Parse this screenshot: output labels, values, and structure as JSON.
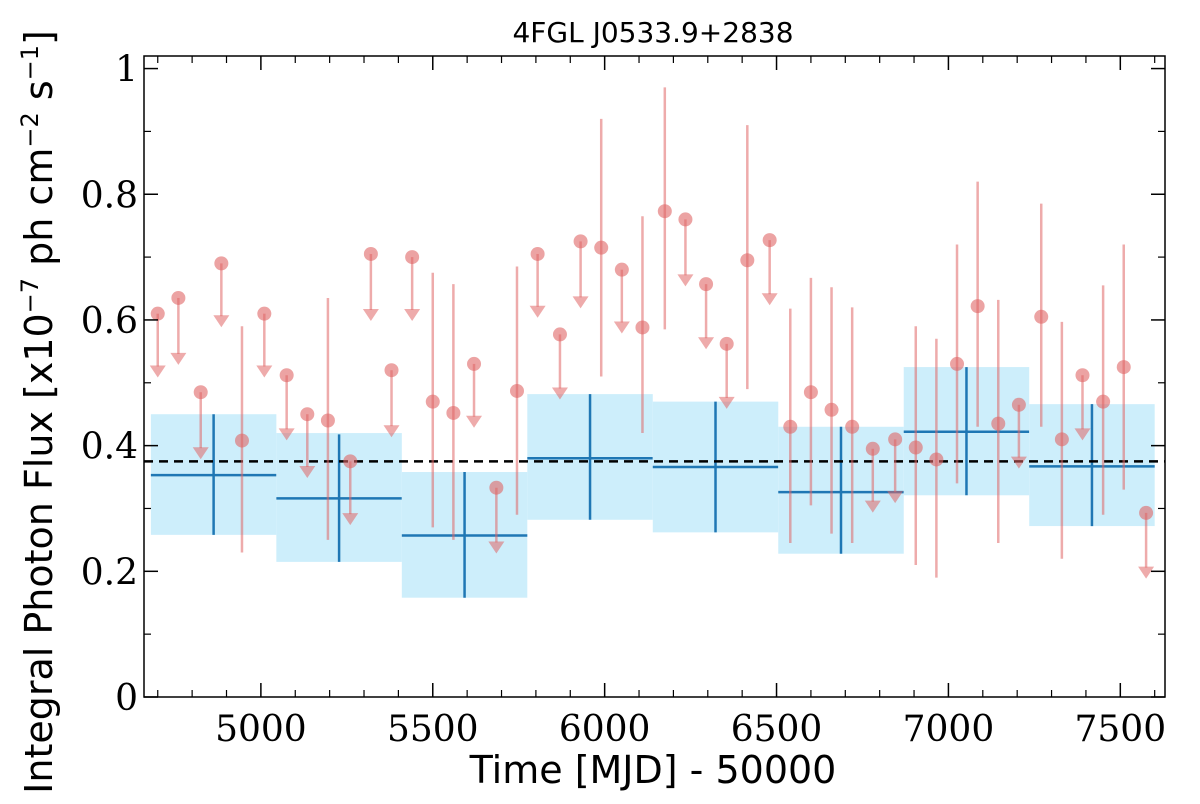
{
  "chart_data": {
    "type": "scatter",
    "title": "4FGL J0533.9+2838",
    "xlabel": "Time [MJD] - 50000",
    "ylabel": "Integral Photon Flux [x10",
    "ylabel_exp": "−7",
    "ylabel_mid": " ph cm",
    "ylabel_exp2": "−2",
    "ylabel_mid2": " s",
    "ylabel_exp3": "−1",
    "ylabel_end": "]",
    "xlim": [
      4660,
      7630
    ],
    "ylim": [
      0,
      1.02
    ],
    "xticks": [
      5000,
      5500,
      6000,
      6500,
      7000,
      7500
    ],
    "xtick_labels": [
      "5000",
      "5500",
      "6000",
      "6500",
      "7000",
      "7500"
    ],
    "yticks": [
      0,
      0.2,
      0.4,
      0.6,
      0.8,
      1
    ],
    "ytick_labels": [
      "0",
      "0.2",
      "0.4",
      "0.6",
      "0.8",
      "1"
    ],
    "mean_flux": 0.375,
    "colors": {
      "bin_line": "#1f77b4",
      "bin_fill": "#cdeefb",
      "point": "#e06666",
      "mean_line": "#000000"
    },
    "yearly_bins": [
      {
        "x_start": 4680,
        "x_end": 5045,
        "y": 0.353,
        "y_low": 0.258,
        "y_high": 0.45,
        "y_err_low": 0.258,
        "y_err_high": 0.45
      },
      {
        "x_start": 5045,
        "x_end": 5410,
        "y": 0.316,
        "y_low": 0.215,
        "y_high": 0.42,
        "y_err_low": 0.215,
        "y_err_high": 0.418
      },
      {
        "x_start": 5410,
        "x_end": 5775,
        "y": 0.257,
        "y_low": 0.158,
        "y_high": 0.358,
        "y_err_low": 0.158,
        "y_err_high": 0.358
      },
      {
        "x_start": 5775,
        "x_end": 6140,
        "y": 0.38,
        "y_low": 0.282,
        "y_high": 0.482,
        "y_err_low": 0.282,
        "y_err_high": 0.482
      },
      {
        "x_start": 6140,
        "x_end": 6505,
        "y": 0.366,
        "y_low": 0.262,
        "y_high": 0.47,
        "y_err_low": 0.262,
        "y_err_high": 0.47
      },
      {
        "x_start": 6505,
        "x_end": 6870,
        "y": 0.326,
        "y_low": 0.228,
        "y_high": 0.43,
        "y_err_low": 0.228,
        "y_err_high": 0.43
      },
      {
        "x_start": 6870,
        "x_end": 7235,
        "y": 0.422,
        "y_low": 0.321,
        "y_high": 0.525,
        "y_err_low": 0.321,
        "y_err_high": 0.525
      },
      {
        "x_start": 7235,
        "x_end": 7600,
        "y": 0.367,
        "y_low": 0.272,
        "y_high": 0.466,
        "y_err_low": 0.272,
        "y_err_high": 0.466
      }
    ],
    "monthly_points": [
      {
        "x": 4700,
        "y": 0.61,
        "upper_limit": true,
        "arrow_to": 0.51
      },
      {
        "x": 4760,
        "y": 0.635,
        "upper_limit": true,
        "arrow_to": 0.53
      },
      {
        "x": 4825,
        "y": 0.485,
        "upper_limit": true,
        "arrow_to": 0.38
      },
      {
        "x": 4885,
        "y": 0.69,
        "upper_limit": true,
        "arrow_to": 0.59
      },
      {
        "x": 4945,
        "y": 0.408,
        "upper_limit": false,
        "err_low": 0.23,
        "err_high": 0.59
      },
      {
        "x": 5010,
        "y": 0.61,
        "upper_limit": true,
        "arrow_to": 0.51
      },
      {
        "x": 5075,
        "y": 0.512,
        "upper_limit": true,
        "arrow_to": 0.41
      },
      {
        "x": 5135,
        "y": 0.45,
        "upper_limit": true,
        "arrow_to": 0.35
      },
      {
        "x": 5195,
        "y": 0.44,
        "upper_limit": false,
        "err_low": 0.25,
        "err_high": 0.635
      },
      {
        "x": 5260,
        "y": 0.375,
        "upper_limit": true,
        "arrow_to": 0.275
      },
      {
        "x": 5320,
        "y": 0.705,
        "upper_limit": true,
        "arrow_to": 0.6
      },
      {
        "x": 5380,
        "y": 0.52,
        "upper_limit": true,
        "arrow_to": 0.415
      },
      {
        "x": 5440,
        "y": 0.7,
        "upper_limit": true,
        "arrow_to": 0.6
      },
      {
        "x": 5500,
        "y": 0.47,
        "upper_limit": false,
        "err_low": 0.27,
        "err_high": 0.675
      },
      {
        "x": 5560,
        "y": 0.452,
        "upper_limit": false,
        "err_low": 0.25,
        "err_high": 0.657
      },
      {
        "x": 5620,
        "y": 0.53,
        "upper_limit": true,
        "arrow_to": 0.43
      },
      {
        "x": 5685,
        "y": 0.333,
        "upper_limit": true,
        "arrow_to": 0.23
      },
      {
        "x": 5745,
        "y": 0.487,
        "upper_limit": false,
        "err_low": 0.29,
        "err_high": 0.685
      },
      {
        "x": 5805,
        "y": 0.705,
        "upper_limit": true,
        "arrow_to": 0.605
      },
      {
        "x": 5870,
        "y": 0.577,
        "upper_limit": true,
        "arrow_to": 0.475
      },
      {
        "x": 5930,
        "y": 0.725,
        "upper_limit": true,
        "arrow_to": 0.62
      },
      {
        "x": 5990,
        "y": 0.715,
        "upper_limit": false,
        "err_low": 0.51,
        "err_high": 0.92
      },
      {
        "x": 6050,
        "y": 0.68,
        "upper_limit": true,
        "arrow_to": 0.58
      },
      {
        "x": 6110,
        "y": 0.588,
        "upper_limit": false,
        "err_low": 0.42,
        "err_high": 0.765
      },
      {
        "x": 6175,
        "y": 0.773,
        "upper_limit": false,
        "err_low": 0.585,
        "err_high": 0.97
      },
      {
        "x": 6235,
        "y": 0.76,
        "upper_limit": true,
        "arrow_to": 0.655
      },
      {
        "x": 6295,
        "y": 0.657,
        "upper_limit": true,
        "arrow_to": 0.555
      },
      {
        "x": 6355,
        "y": 0.562,
        "upper_limit": true,
        "arrow_to": 0.46
      },
      {
        "x": 6415,
        "y": 0.695,
        "upper_limit": false,
        "err_low": 0.49,
        "err_high": 0.91
      },
      {
        "x": 6480,
        "y": 0.727,
        "upper_limit": true,
        "arrow_to": 0.625
      },
      {
        "x": 6540,
        "y": 0.43,
        "upper_limit": false,
        "err_low": 0.245,
        "err_high": 0.618
      },
      {
        "x": 6600,
        "y": 0.485,
        "upper_limit": false,
        "err_low": 0.305,
        "err_high": 0.667
      },
      {
        "x": 6660,
        "y": 0.457,
        "upper_limit": false,
        "err_low": 0.26,
        "err_high": 0.652
      },
      {
        "x": 6720,
        "y": 0.43,
        "upper_limit": false,
        "err_low": 0.245,
        "err_high": 0.62
      },
      {
        "x": 6780,
        "y": 0.395,
        "upper_limit": true,
        "arrow_to": 0.295
      },
      {
        "x": 6845,
        "y": 0.41,
        "upper_limit": true,
        "arrow_to": 0.31
      },
      {
        "x": 6905,
        "y": 0.397,
        "upper_limit": false,
        "err_low": 0.21,
        "err_high": 0.59
      },
      {
        "x": 6965,
        "y": 0.378,
        "upper_limit": false,
        "err_low": 0.19,
        "err_high": 0.57
      },
      {
        "x": 7025,
        "y": 0.53,
        "upper_limit": false,
        "err_low": 0.34,
        "err_high": 0.72
      },
      {
        "x": 7085,
        "y": 0.622,
        "upper_limit": false,
        "err_low": 0.43,
        "err_high": 0.82
      },
      {
        "x": 7145,
        "y": 0.435,
        "upper_limit": false,
        "err_low": 0.245,
        "err_high": 0.632
      },
      {
        "x": 7205,
        "y": 0.465,
        "upper_limit": true,
        "arrow_to": 0.365
      },
      {
        "x": 7270,
        "y": 0.605,
        "upper_limit": false,
        "err_low": 0.43,
        "err_high": 0.785
      },
      {
        "x": 7330,
        "y": 0.41,
        "upper_limit": false,
        "err_low": 0.22,
        "err_high": 0.597
      },
      {
        "x": 7390,
        "y": 0.512,
        "upper_limit": true,
        "arrow_to": 0.41
      },
      {
        "x": 7450,
        "y": 0.47,
        "upper_limit": false,
        "err_low": 0.29,
        "err_high": 0.655
      },
      {
        "x": 7510,
        "y": 0.525,
        "upper_limit": false,
        "err_low": 0.33,
        "err_high": 0.72
      },
      {
        "x": 7575,
        "y": 0.293,
        "upper_limit": true,
        "arrow_to": 0.19
      }
    ]
  }
}
